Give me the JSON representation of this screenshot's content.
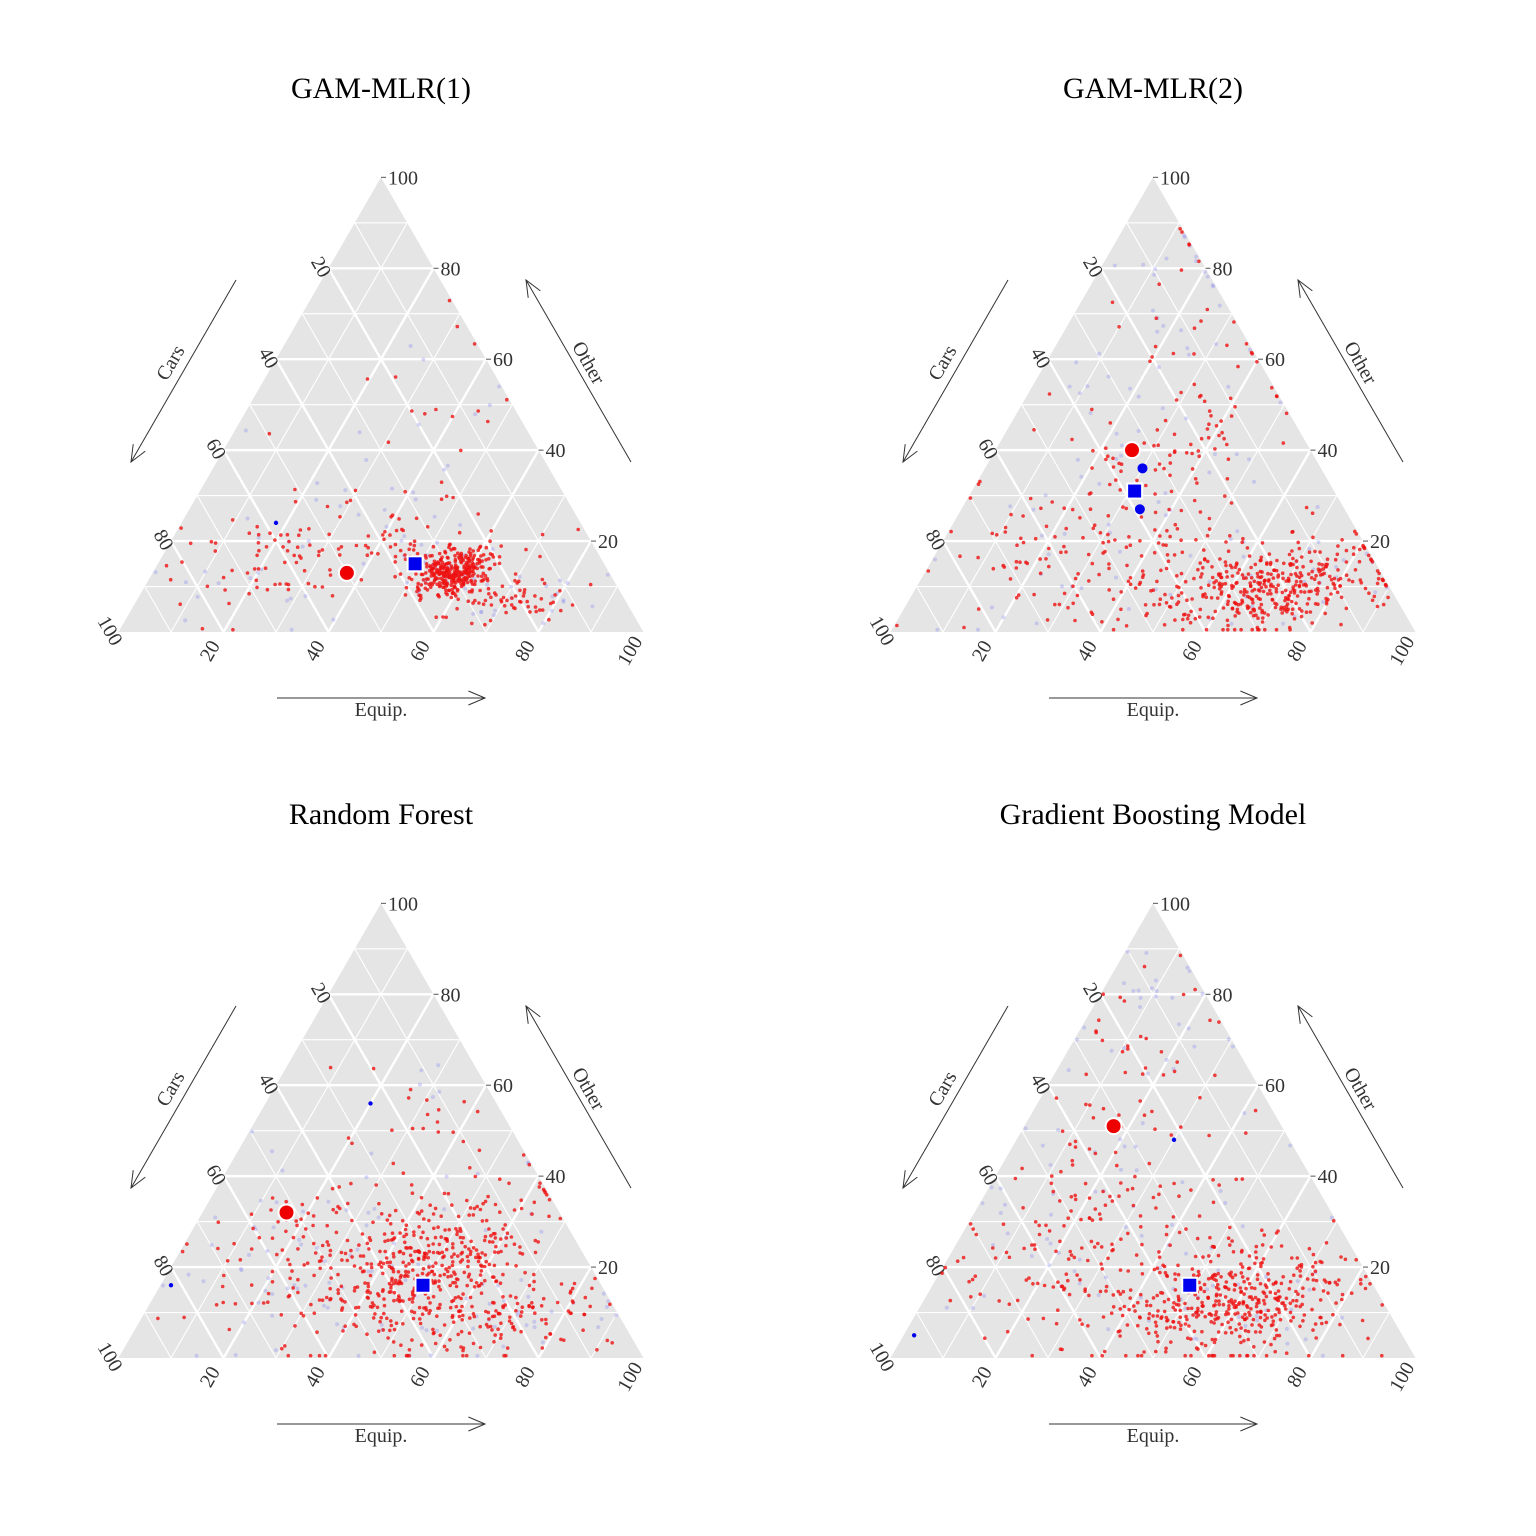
{
  "chart_data": [
    {
      "type": "scatter",
      "title": "GAM-MLR(1)",
      "axes": {
        "cars": "Cars",
        "equip": "Equip.",
        "other": "Other"
      },
      "ticks": [
        20,
        40,
        60,
        80,
        100
      ],
      "grid": true,
      "cloud": [
        {
          "equip": 57,
          "other": 13,
          "spread_equip": 3.5,
          "spread_other": 2.5,
          "count": 320
        },
        {
          "equip": 72,
          "other": 7,
          "spread_equip": 6,
          "spread_other": 2.5,
          "count": 60
        },
        {
          "equip": 40,
          "other": 20,
          "spread_equip": 15,
          "spread_other": 5,
          "count": 90
        },
        {
          "equip": 20,
          "other": 13,
          "spread_equip": 10,
          "spread_other": 6,
          "count": 45
        },
        {
          "equip": 35,
          "other": 45,
          "spread_equip": 12,
          "spread_other": 14,
          "count": 20
        }
      ],
      "faint_count": 90,
      "markers": {
        "red_circle": [
          {
            "equip": 37,
            "other": 13
          }
        ],
        "blue_square": [
          {
            "equip": 49,
            "other": 15
          }
        ],
        "blue_small": [
          {
            "equip": 18,
            "other": 24
          }
        ]
      }
    },
    {
      "type": "scatter",
      "title": "GAM-MLR(2)",
      "axes": {
        "cars": "Cars",
        "equip": "Equip.",
        "other": "Other"
      },
      "ticks": [
        20,
        40,
        60,
        80,
        100
      ],
      "grid": true,
      "cloud": [
        {
          "equip": 65,
          "other": 10,
          "spread_equip": 11,
          "spread_other": 5,
          "count": 420
        },
        {
          "equip": 30,
          "other": 16,
          "spread_equip": 14,
          "spread_other": 8,
          "count": 90
        },
        {
          "equip": 32,
          "other": 40,
          "spread_equip": 12,
          "spread_other": 16,
          "count": 120
        },
        {
          "equip": 15,
          "other": 72,
          "spread_equip": 6,
          "spread_other": 10,
          "count": 12
        }
      ],
      "faint_count": 110,
      "markers": {
        "red_circle": [
          {
            "equip": 26,
            "other": 40
          }
        ],
        "blue_square": [
          {
            "equip": 31,
            "other": 31
          }
        ],
        "blue_small": [
          {
            "equip": 30,
            "other": 36
          },
          {
            "equip": 34,
            "other": 27
          }
        ]
      }
    },
    {
      "type": "scatter",
      "title": "Random Forest",
      "axes": {
        "cars": "Cars",
        "equip": "Equip.",
        "other": "Other"
      },
      "ticks": [
        20,
        40,
        60,
        80,
        100
      ],
      "grid": true,
      "cloud": [
        {
          "equip": 48,
          "other": 20,
          "spread_equip": 11,
          "spread_other": 9,
          "count": 460
        },
        {
          "equip": 70,
          "other": 8,
          "spread_equip": 10,
          "spread_other": 4,
          "count": 110
        },
        {
          "equip": 20,
          "other": 22,
          "spread_equip": 9,
          "spread_other": 9,
          "count": 80
        },
        {
          "equip": 28,
          "other": 45,
          "spread_equip": 8,
          "spread_other": 12,
          "count": 25
        }
      ],
      "faint_count": 110,
      "markers": {
        "red_circle": [
          {
            "equip": 16,
            "other": 32
          }
        ],
        "blue_square": [
          {
            "equip": 50,
            "other": 16
          }
        ],
        "blue_small": [
          {
            "equip": 20,
            "other": 56
          },
          {
            "equip": 2,
            "other": 16
          }
        ]
      }
    },
    {
      "type": "scatter",
      "title": "Gradient Boosting Model",
      "axes": {
        "cars": "Cars",
        "equip": "Equip.",
        "other": "Other"
      },
      "ticks": [
        20,
        40,
        60,
        80,
        100
      ],
      "grid": true,
      "cloud": [
        {
          "equip": 60,
          "other": 12,
          "spread_equip": 11,
          "spread_other": 6,
          "count": 420
        },
        {
          "equip": 30,
          "other": 22,
          "spread_equip": 14,
          "spread_other": 10,
          "count": 150
        },
        {
          "equip": 18,
          "other": 48,
          "spread_equip": 10,
          "spread_other": 16,
          "count": 70
        },
        {
          "equip": 8,
          "other": 78,
          "spread_equip": 5,
          "spread_other": 8,
          "count": 12
        }
      ],
      "faint_count": 110,
      "markers": {
        "red_circle": [
          {
            "equip": 17,
            "other": 51
          }
        ],
        "blue_square": [
          {
            "equip": 49,
            "other": 16
          }
        ],
        "blue_small": [
          {
            "equip": 30,
            "other": 48
          },
          {
            "equip": 2,
            "other": 5
          }
        ]
      }
    }
  ]
}
